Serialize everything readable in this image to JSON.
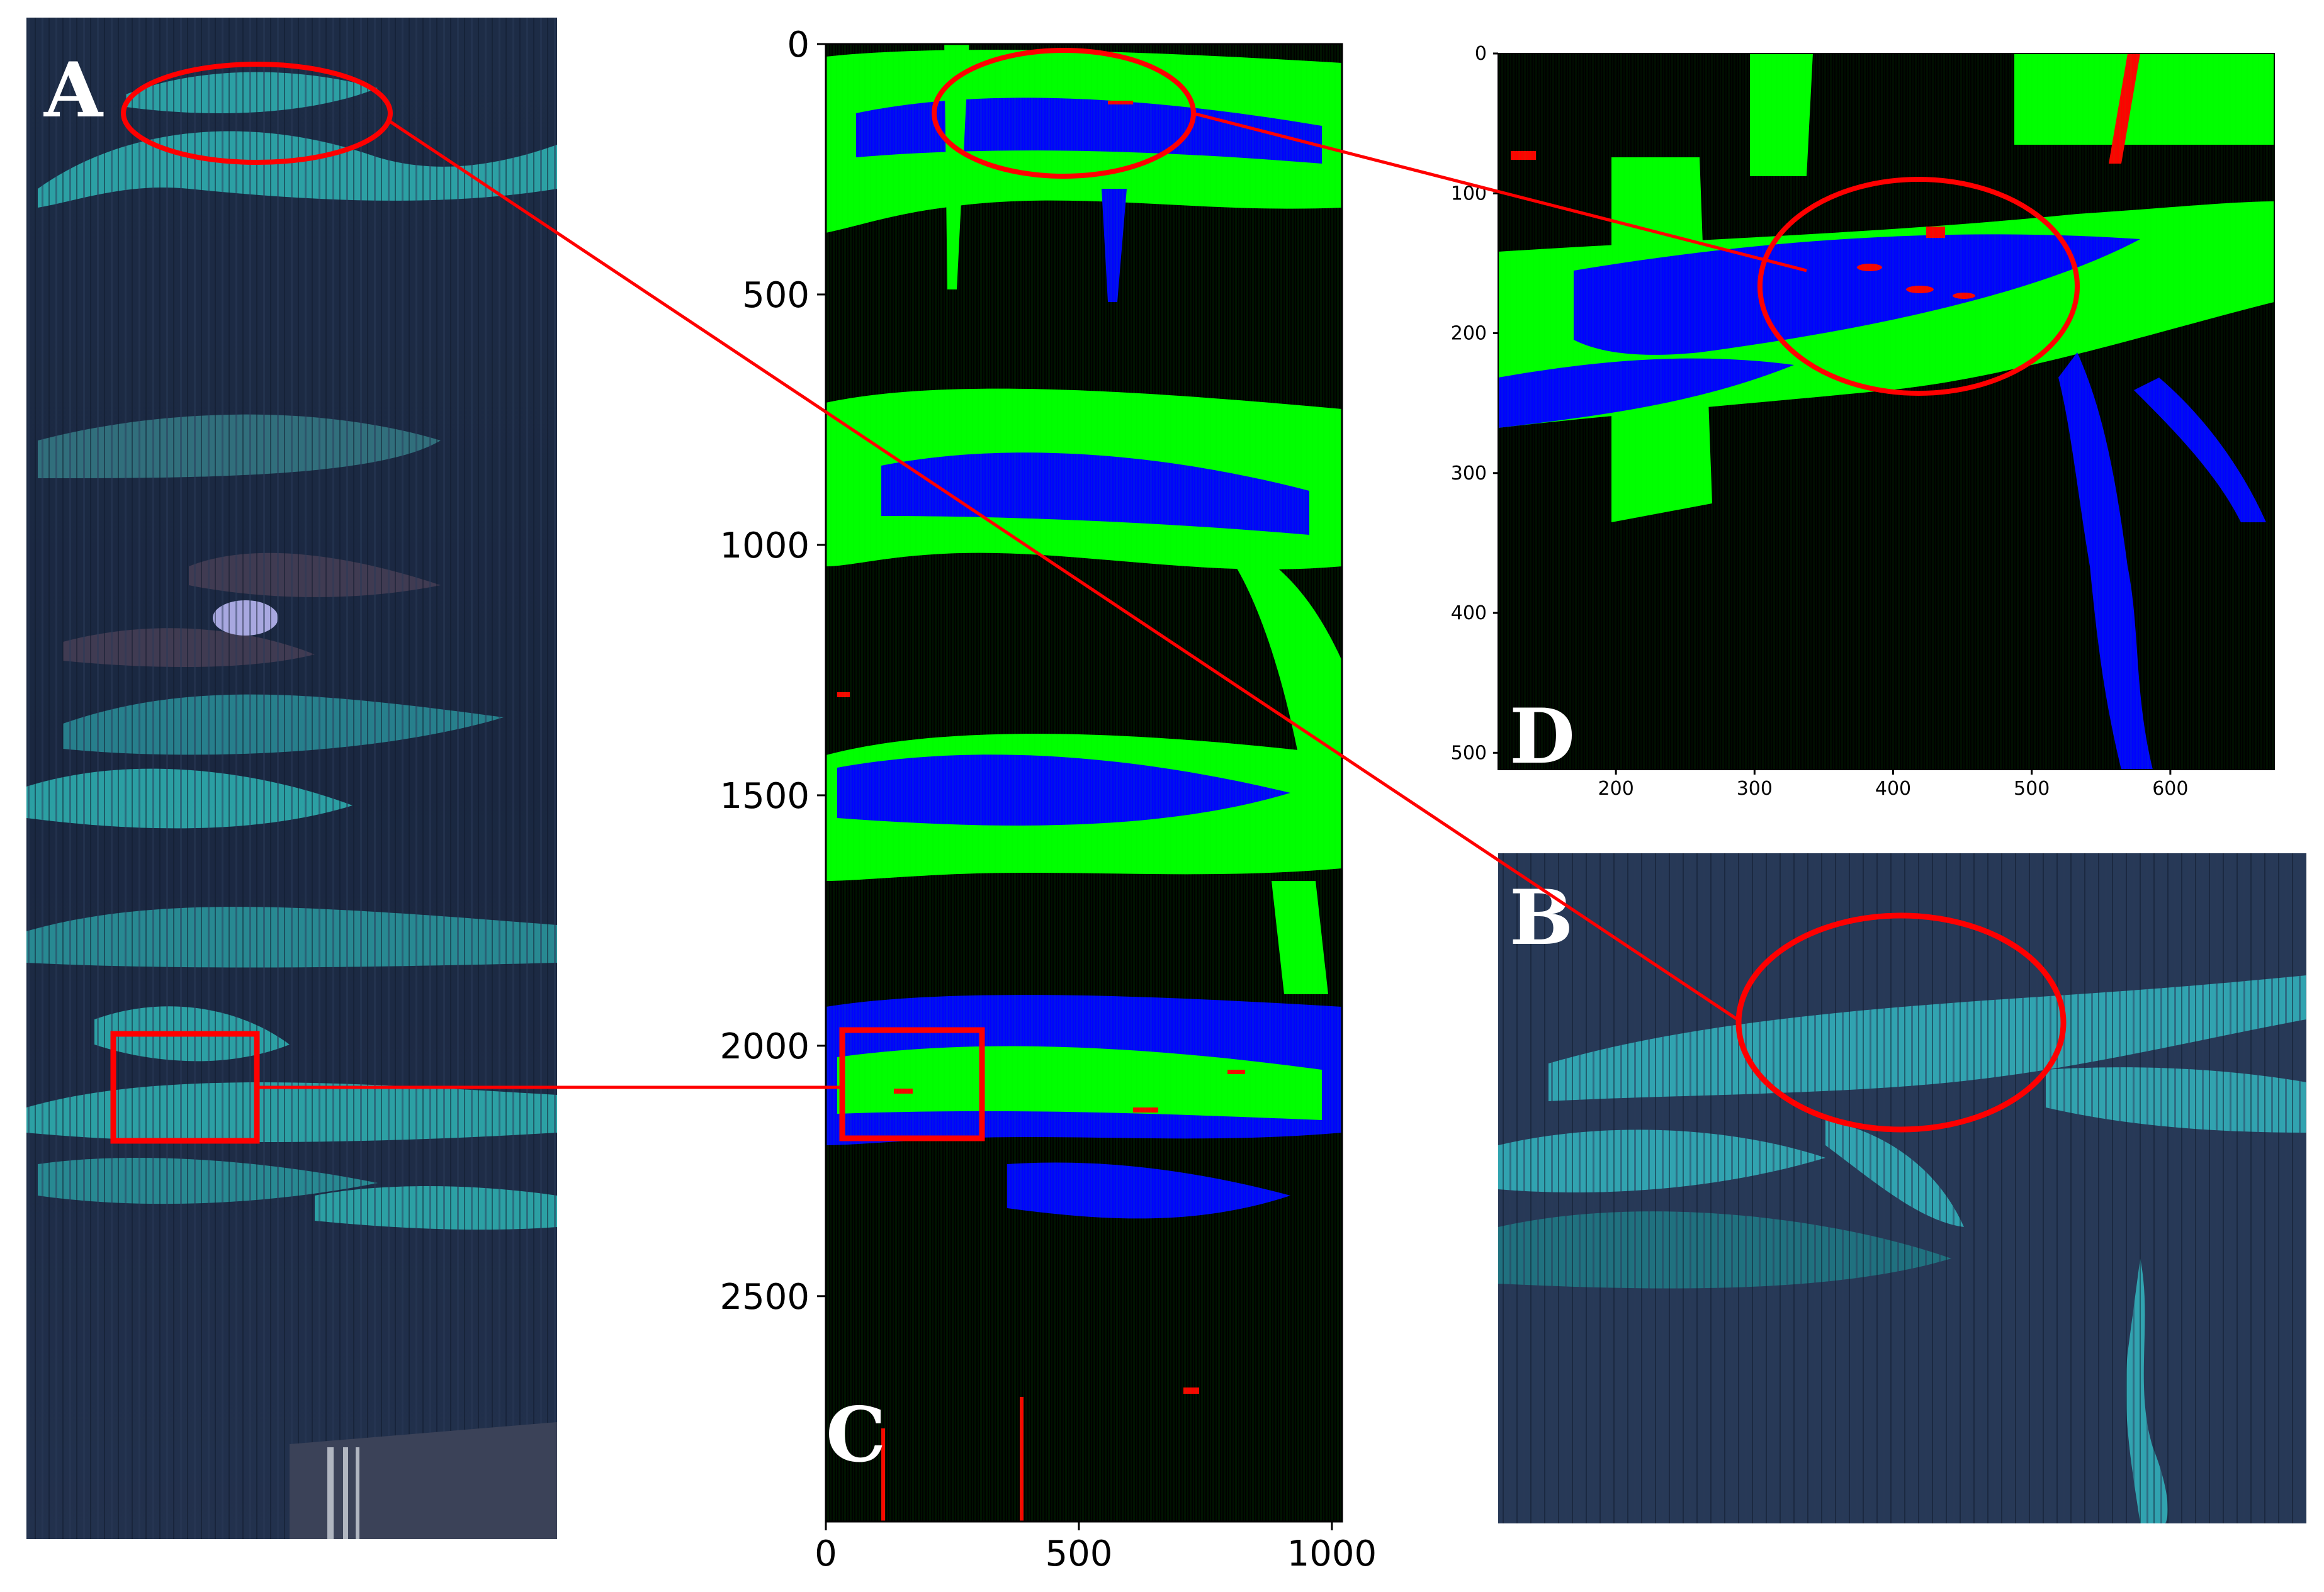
{
  "panels": {
    "A": {
      "letter": "A"
    },
    "B": {
      "letter": "B"
    },
    "C": {
      "letter": "C",
      "y_ticks": [
        "0",
        "500",
        "1000",
        "1500",
        "2000",
        "2500"
      ],
      "x_ticks": [
        "0",
        "500",
        "1000"
      ],
      "xlim": [
        0,
        1020
      ],
      "ylim": [
        0,
        2950
      ]
    },
    "D": {
      "letter": "D",
      "y_ticks": [
        "0",
        "100",
        "200",
        "300",
        "400",
        "500"
      ],
      "x_ticks": [
        "200",
        "300",
        "400",
        "500",
        "600"
      ],
      "xlim": [
        115,
        675
      ],
      "ylim": [
        0,
        512
      ]
    }
  },
  "colors": {
    "vegetation_green": "#00ff00",
    "vegetation_blue": "#0000ff",
    "marker_red": "#ff0000",
    "background_black": "#000000",
    "photo_dark": "#1b2a43",
    "leaf_teal": "#2fb5b5"
  }
}
